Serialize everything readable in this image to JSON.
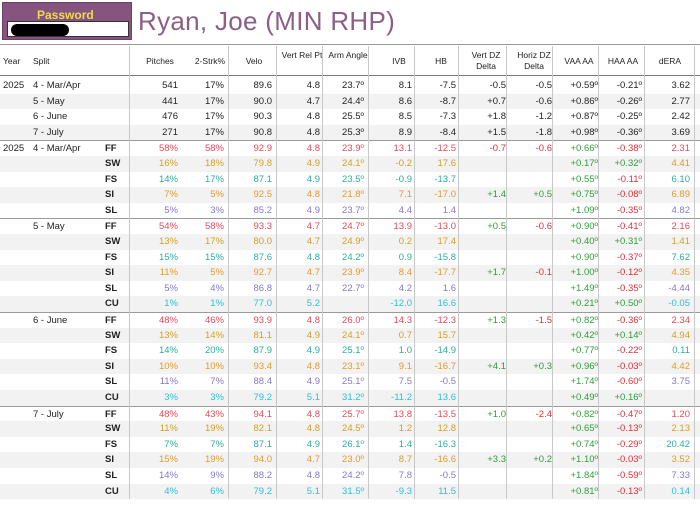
{
  "password": {
    "label": "Password"
  },
  "title": "Ryan, Joe (MIN RHP)",
  "colors": {
    "FF": "#e8485b",
    "SW": "#d4a020",
    "FS": "#2aaf9e",
    "SI": "#e49a2a",
    "SL": "#8878c8",
    "CU": "#2cc1d8",
    "title": "#8b5f86",
    "green": "#2e9e3a",
    "red": "#e0303a",
    "blue": "#3a4fb8"
  },
  "headers": [
    "Year",
    "Split",
    "Pitches",
    "2-Strk%",
    "Velo",
    "Vert Rel Pt",
    "Arm Angle",
    "IVB",
    "HB",
    "Vert DZ Delta",
    "Horiz DZ Delta",
    "VAA AA",
    "HAA AA",
    "dERA"
  ],
  "monthly": [
    {
      "year": "2025",
      "split": "4 - Mar/Apr",
      "pitches": "541",
      "strk": "17%",
      "velo": "89.6",
      "vrel": "4.8",
      "arm": "23.7º",
      "ivb": "8.1",
      "hb": "-7.5",
      "vdz": "-0.5",
      "hdz": "-0.5",
      "vaa": "+0.59º",
      "haa": "-0.21º",
      "dera": "3.62"
    },
    {
      "year": "",
      "split": "5 - May",
      "pitches": "441",
      "strk": "17%",
      "velo": "90.0",
      "vrel": "4.7",
      "arm": "24.4º",
      "ivb": "8.6",
      "hb": "-8.7",
      "vdz": "+0.7",
      "hdz": "-0.6",
      "vaa": "+0.86º",
      "haa": "-0.26º",
      "dera": "2.77"
    },
    {
      "year": "",
      "split": "6 - June",
      "pitches": "476",
      "strk": "17%",
      "velo": "90.3",
      "vrel": "4.8",
      "arm": "25.5º",
      "ivb": "8.5",
      "hb": "-7.3",
      "vdz": "+1.8",
      "hdz": "-1.2",
      "vaa": "+0.87º",
      "haa": "-0.25º",
      "dera": "2.42"
    },
    {
      "year": "",
      "split": "7 - July",
      "pitches": "271",
      "strk": "17%",
      "velo": "90.8",
      "vrel": "4.8",
      "arm": "25.3º",
      "ivb": "8.9",
      "hb": "-8.4",
      "vdz": "+1.5",
      "hdz": "-1.8",
      "vaa": "+0.98º",
      "haa": "-0.36º",
      "dera": "3.69"
    }
  ],
  "pitch_groups": [
    {
      "year": "2025",
      "split": "4 - Mar/Apr",
      "rows": [
        {
          "type": "FF",
          "pitches": "58%",
          "strk": "58%",
          "velo": "92.9",
          "vrel": "4.8",
          "arm": "23.9º",
          "ivb": "13.1",
          "hb": "-12.5",
          "vdz": "-0.7",
          "hdz": "-0.6",
          "vaa": "+0.66º",
          "haa": "-0.38º",
          "dera": "2.31"
        },
        {
          "type": "SW",
          "pitches": "16%",
          "strk": "18%",
          "velo": "79.8",
          "vrel": "4.9",
          "arm": "24.1º",
          "ivb": "-0.2",
          "hb": "17.6",
          "vdz": "",
          "hdz": "",
          "vaa": "+0.17º",
          "haa": "+0.32º",
          "dera": "4.41"
        },
        {
          "type": "FS",
          "pitches": "14%",
          "strk": "17%",
          "velo": "87.1",
          "vrel": "4.9",
          "arm": "23.5º",
          "ivb": "-0.9",
          "hb": "-13.7",
          "vdz": "",
          "hdz": "",
          "vaa": "+0.55º",
          "haa": "-0.11º",
          "dera": "6.10"
        },
        {
          "type": "SI",
          "pitches": "7%",
          "strk": "5%",
          "velo": "92.5",
          "vrel": "4.8",
          "arm": "21.8º",
          "ivb": "7.1",
          "hb": "-17.0",
          "vdz": "+1.4",
          "hdz": "+0.5",
          "vaa": "+0.75º",
          "haa": "-0.08º",
          "dera": "6.89"
        },
        {
          "type": "SL",
          "pitches": "5%",
          "strk": "3%",
          "velo": "85.2",
          "vrel": "4.9",
          "arm": "23.7º",
          "ivb": "4.4",
          "hb": "1.4",
          "vdz": "",
          "hdz": "",
          "vaa": "+1.09º",
          "haa": "-0.35º",
          "dera": "4.82"
        }
      ]
    },
    {
      "year": "",
      "split": "5 - May",
      "rows": [
        {
          "type": "FF",
          "pitches": "54%",
          "strk": "58%",
          "velo": "93.3",
          "vrel": "4.7",
          "arm": "24.7º",
          "ivb": "13.9",
          "hb": "-13.0",
          "vdz": "+0.5",
          "hdz": "-0.6",
          "vaa": "+0.90º",
          "haa": "-0.41º",
          "dera": "2.16"
        },
        {
          "type": "SW",
          "pitches": "13%",
          "strk": "17%",
          "velo": "80.0",
          "vrel": "4.7",
          "arm": "24.9º",
          "ivb": "0.2",
          "hb": "17.4",
          "vdz": "",
          "hdz": "",
          "vaa": "+0.40º",
          "haa": "+0.31º",
          "dera": "1.41"
        },
        {
          "type": "FS",
          "pitches": "15%",
          "strk": "15%",
          "velo": "87.6",
          "vrel": "4.8",
          "arm": "24.2º",
          "ivb": "0.9",
          "hb": "-15.8",
          "vdz": "",
          "hdz": "",
          "vaa": "+0.90º",
          "haa": "-0.37º",
          "dera": "7.62"
        },
        {
          "type": "SI",
          "pitches": "11%",
          "strk": "5%",
          "velo": "92.7",
          "vrel": "4.7",
          "arm": "23.9º",
          "ivb": "8.4",
          "hb": "-17.7",
          "vdz": "+1.7",
          "hdz": "-0.1",
          "vaa": "+1.00º",
          "haa": "-0.12º",
          "dera": "4.35"
        },
        {
          "type": "SL",
          "pitches": "5%",
          "strk": "4%",
          "velo": "86.8",
          "vrel": "4.7",
          "arm": "22.7º",
          "ivb": "4.2",
          "hb": "1.6",
          "vdz": "",
          "hdz": "",
          "vaa": "+1.49º",
          "haa": "-0.35º",
          "dera": "-4.44"
        },
        {
          "type": "CU",
          "pitches": "1%",
          "strk": "1%",
          "velo": "77.0",
          "vrel": "5.2",
          "arm": "",
          "ivb": "-12.0",
          "hb": "16.6",
          "vdz": "",
          "hdz": "",
          "vaa": "+0.21º",
          "haa": "+0.50º",
          "dera": "-0.05"
        }
      ]
    },
    {
      "year": "",
      "split": "6 - June",
      "rows": [
        {
          "type": "FF",
          "pitches": "48%",
          "strk": "46%",
          "velo": "93.9",
          "vrel": "4.8",
          "arm": "26.0º",
          "ivb": "14.3",
          "hb": "-12.3",
          "vdz": "+1.3",
          "hdz": "-1.5",
          "vaa": "+0.82º",
          "haa": "-0.36º",
          "dera": "2.34"
        },
        {
          "type": "SW",
          "pitches": "13%",
          "strk": "14%",
          "velo": "81.1",
          "vrel": "4.9",
          "arm": "24.1º",
          "ivb": "0.7",
          "hb": "15.7",
          "vdz": "",
          "hdz": "",
          "vaa": "+0.42º",
          "haa": "+0.14º",
          "dera": "4.94"
        },
        {
          "type": "FS",
          "pitches": "14%",
          "strk": "20%",
          "velo": "87.9",
          "vrel": "4.9",
          "arm": "25.1º",
          "ivb": "1.0",
          "hb": "-14.9",
          "vdz": "",
          "hdz": "",
          "vaa": "+0.77º",
          "haa": "-0.22º",
          "dera": "0.11"
        },
        {
          "type": "SI",
          "pitches": "10%",
          "strk": "10%",
          "velo": "93.4",
          "vrel": "4.8",
          "arm": "23.1º",
          "ivb": "9.1",
          "hb": "-16.7",
          "vdz": "+4.1",
          "hdz": "+0.3",
          "vaa": "+0.96º",
          "haa": "-0.03º",
          "dera": "4.42"
        },
        {
          "type": "SL",
          "pitches": "11%",
          "strk": "7%",
          "velo": "88.4",
          "vrel": "4.9",
          "arm": "25.1º",
          "ivb": "7.5",
          "hb": "-0.5",
          "vdz": "",
          "hdz": "",
          "vaa": "+1.74º",
          "haa": "-0.60º",
          "dera": "3.75"
        },
        {
          "type": "CU",
          "pitches": "3%",
          "strk": "3%",
          "velo": "79.2",
          "vrel": "5.1",
          "arm": "31.2º",
          "ivb": "-11.2",
          "hb": "13.6",
          "vdz": "",
          "hdz": "",
          "vaa": "+0.49º",
          "haa": "+0.16º",
          "dera": ""
        }
      ]
    },
    {
      "year": "",
      "split": "7 - July",
      "rows": [
        {
          "type": "FF",
          "pitches": "48%",
          "strk": "43%",
          "velo": "94.1",
          "vrel": "4.8",
          "arm": "25.7º",
          "ivb": "13.8",
          "hb": "-13.5",
          "vdz": "+1.0",
          "hdz": "-2.4",
          "vaa": "+0.82º",
          "haa": "-0.47º",
          "dera": "1.20"
        },
        {
          "type": "SW",
          "pitches": "11%",
          "strk": "19%",
          "velo": "82.1",
          "vrel": "4.8",
          "arm": "24.5º",
          "ivb": "1.2",
          "hb": "12.8",
          "vdz": "",
          "hdz": "",
          "vaa": "+0.65º",
          "haa": "-0.13º",
          "dera": "2.13"
        },
        {
          "type": "FS",
          "pitches": "7%",
          "strk": "7%",
          "velo": "87.1",
          "vrel": "4.9",
          "arm": "26.1º",
          "ivb": "1.4",
          "hb": "-16.3",
          "vdz": "",
          "hdz": "",
          "vaa": "+0.74º",
          "haa": "-0.29º",
          "dera": "20.42"
        },
        {
          "type": "SI",
          "pitches": "15%",
          "strk": "19%",
          "velo": "94.0",
          "vrel": "4.7",
          "arm": "23.0º",
          "ivb": "8.7",
          "hb": "-16.6",
          "vdz": "+3.3",
          "hdz": "+0.2",
          "vaa": "+1.10º",
          "haa": "-0.03º",
          "dera": "3.52"
        },
        {
          "type": "SL",
          "pitches": "14%",
          "strk": "9%",
          "velo": "88.2",
          "vrel": "4.8",
          "arm": "24.2º",
          "ivb": "7.8",
          "hb": "-0.5",
          "vdz": "",
          "hdz": "",
          "vaa": "+1.84º",
          "haa": "-0.59º",
          "dera": "7.33"
        },
        {
          "type": "CU",
          "pitches": "4%",
          "strk": "6%",
          "velo": "79.2",
          "vrel": "5.1",
          "arm": "31.5º",
          "ivb": "-9.3",
          "hb": "11.5",
          "vdz": "",
          "hdz": "",
          "vaa": "+0.81º",
          "haa": "-0.13º",
          "dera": "0.14"
        }
      ]
    }
  ]
}
